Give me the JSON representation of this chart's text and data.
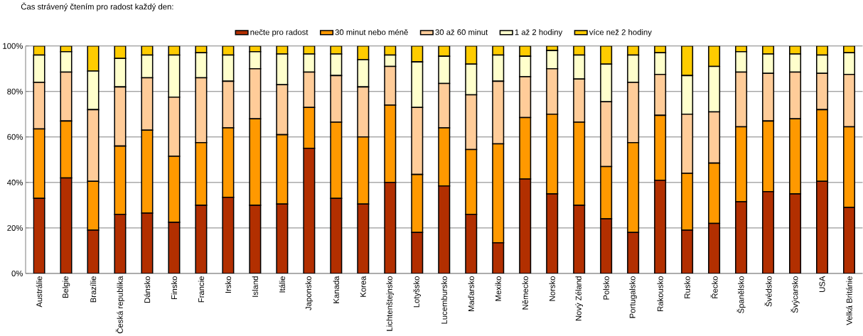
{
  "chart_data": {
    "type": "bar",
    "title": "Čas strávený čtením pro radost každý den:",
    "categories": [
      "Austrálie",
      "Belgie",
      "Brazílie",
      "Česká republika",
      "Dánsko",
      "Finsko",
      "Francie",
      "Irsko",
      "Island",
      "Itálie",
      "Japonsko",
      "Kanada",
      "Korea",
      "Lichtenštejnsko",
      "Lotyšsko",
      "Lucembursko",
      "Maďarsko",
      "Mexiko",
      "Německo",
      "Norsko",
      "Nový Zéland",
      "Polsko",
      "Portugalsko",
      "Rakousko",
      "Rusko",
      "Řecko",
      "Španělsko",
      "Švédsko",
      "Švýcarsko",
      "USA",
      "Velká Británie"
    ],
    "series": [
      {
        "name": "nečte pro radost",
        "color": "#b22f00",
        "values": [
          33,
          42,
          19,
          26,
          26.5,
          22.5,
          30,
          33.5,
          30,
          30.5,
          55,
          33,
          30.5,
          40,
          18,
          38.5,
          26,
          13.5,
          41.5,
          35,
          30,
          24,
          18,
          41,
          19,
          22,
          31.5,
          36,
          35,
          40.5,
          29
        ]
      },
      {
        "name": "30 minut nebo méně",
        "color": "#ff9900",
        "values": [
          30.5,
          25,
          21.5,
          30,
          36.5,
          29,
          27.5,
          30.5,
          38,
          30.5,
          18,
          33.5,
          29.5,
          34,
          25.5,
          25.5,
          28.5,
          43.5,
          27,
          35,
          36.5,
          23,
          39.5,
          28.5,
          25,
          26.5,
          33,
          31,
          33,
          31.5,
          35.5
        ]
      },
      {
        "name": "30 až 60 minut",
        "color": "#ffcc99",
        "values": [
          20.5,
          21.5,
          31.5,
          26,
          23,
          26,
          28.5,
          20.5,
          22,
          22,
          15.5,
          20.5,
          22,
          17,
          29.5,
          19.5,
          24,
          27.5,
          18,
          20,
          19,
          28.5,
          26.5,
          18,
          26,
          22.5,
          24,
          21,
          20.5,
          16,
          23
        ]
      },
      {
        "name": "1 až 2 hodiny",
        "color": "#ffffcc",
        "values": [
          12,
          9,
          17,
          12.5,
          10,
          18.5,
          11,
          11.5,
          7.5,
          13.5,
          8,
          9.5,
          12,
          5,
          20,
          12,
          13.5,
          11.5,
          9,
          8,
          10.5,
          16.5,
          12,
          9.5,
          17,
          20,
          9,
          8.5,
          8,
          8,
          9.5
        ]
      },
      {
        "name": "více než 2 hodiny",
        "color": "#ffcc00",
        "values": [
          4,
          2.5,
          11,
          5.5,
          4,
          4,
          3,
          4,
          2.5,
          3.5,
          3.5,
          3.5,
          6,
          4,
          7,
          4.5,
          8,
          4,
          4.5,
          2,
          4,
          8,
          4,
          3,
          13,
          9,
          2.5,
          3.5,
          3.5,
          4,
          3
        ]
      }
    ],
    "stacked": true,
    "ylim": [
      0,
      100
    ],
    "yticks": [
      {
        "value": 0,
        "label": "0%"
      },
      {
        "value": 20,
        "label": "20%"
      },
      {
        "value": 40,
        "label": "40%"
      },
      {
        "value": 60,
        "label": "60%"
      },
      {
        "value": 80,
        "label": "80%"
      },
      {
        "value": 100,
        "label": "100%"
      }
    ],
    "grid": "y",
    "legend": "top"
  }
}
